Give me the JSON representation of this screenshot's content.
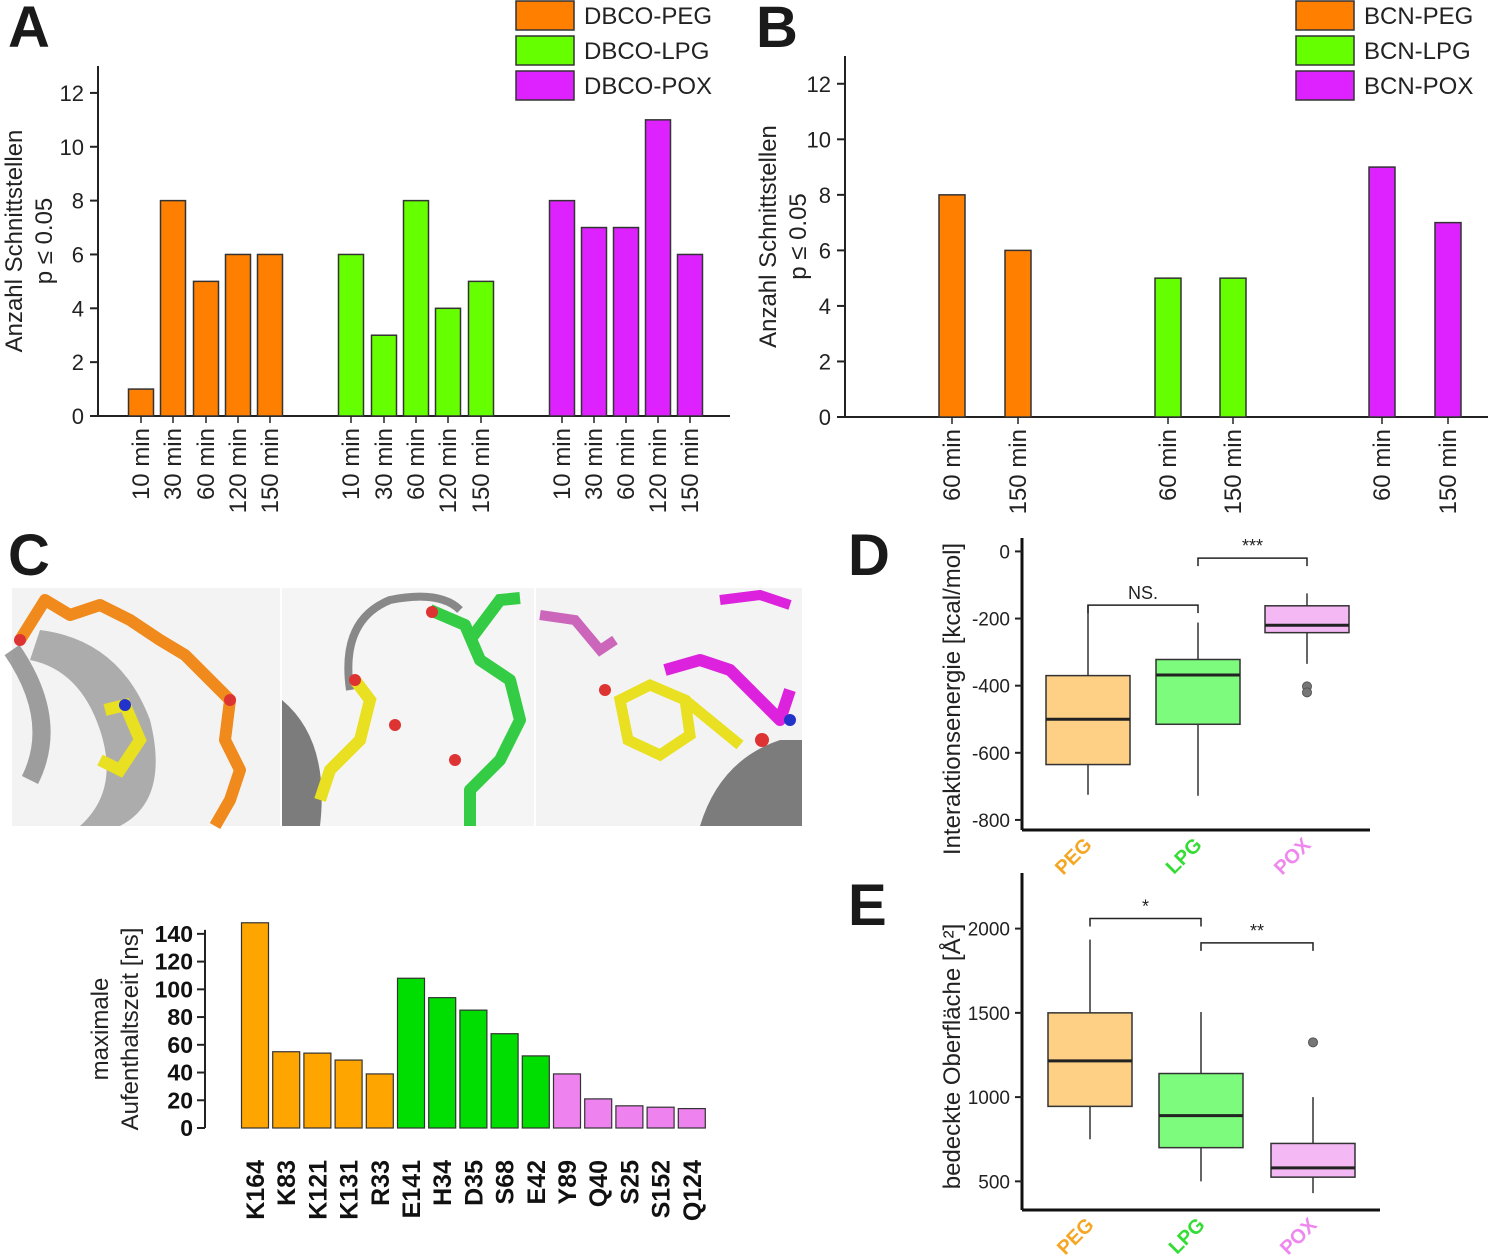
{
  "panels": {
    "a": "A",
    "b": "B",
    "c": "C",
    "d": "D",
    "e": "E"
  },
  "colors": {
    "peg": "#ff7f00",
    "lpg": "#66ff00",
    "pox": "#dd22ff",
    "c_peg": "#ffa500",
    "c_lpg": "#00dd00",
    "c_pox": "#ee82ee",
    "box_peg": "#fdd085",
    "box_lpg": "#7dfb7d",
    "box_pox": "#f4b8f4",
    "lab_peg": "#f5a623",
    "lab_lpg": "#33dd33",
    "lab_pox": "#ee88ee"
  },
  "structure_image": {
    "description_visible": false
  },
  "chart_data": [
    {
      "id": "A",
      "type": "bar",
      "ylabel_line1": "Anzahl Schnittstellen",
      "ylabel_line2": "p ≤ 0.05",
      "ylim": [
        0,
        13
      ],
      "yticks": [
        0,
        2,
        4,
        6,
        8,
        10,
        12
      ],
      "legend": [
        "DBCO-PEG",
        "DBCO-LPG",
        "DBCO-POX"
      ],
      "legend_position": "top-right",
      "groups": [
        {
          "name": "DBCO-PEG",
          "color_key": "peg",
          "categories": [
            "10 min",
            "30 min",
            "60 min",
            "120 min",
            "150 min"
          ],
          "values": [
            1,
            8,
            5,
            6,
            6
          ]
        },
        {
          "name": "DBCO-LPG",
          "color_key": "lpg",
          "categories": [
            "10 min",
            "30 min",
            "60 min",
            "120 min",
            "150 min"
          ],
          "values": [
            6,
            3,
            8,
            4,
            5
          ]
        },
        {
          "name": "DBCO-POX",
          "color_key": "pox",
          "categories": [
            "10 min",
            "30 min",
            "60 min",
            "120 min",
            "150 min"
          ],
          "values": [
            8,
            7,
            7,
            11,
            6
          ]
        }
      ]
    },
    {
      "id": "B",
      "type": "bar",
      "ylabel_line1": "Anzahl Schnittstellen",
      "ylabel_line2": "p ≤ 0.05",
      "ylim": [
        0,
        13
      ],
      "yticks": [
        0,
        2,
        4,
        6,
        8,
        10,
        12
      ],
      "legend": [
        "BCN-PEG",
        "BCN-LPG",
        "BCN-POX"
      ],
      "legend_position": "top-right",
      "groups": [
        {
          "name": "BCN-PEG",
          "color_key": "peg",
          "categories": [
            "60 min",
            "150 min"
          ],
          "values": [
            8,
            6
          ]
        },
        {
          "name": "BCN-LPG",
          "color_key": "lpg",
          "categories": [
            "60 min",
            "150 min"
          ],
          "values": [
            5,
            5
          ]
        },
        {
          "name": "BCN-POX",
          "color_key": "pox",
          "categories": [
            "60 min",
            "150 min"
          ],
          "values": [
            9,
            7
          ]
        }
      ]
    },
    {
      "id": "C",
      "type": "bar",
      "ylabel_line1": "maximale",
      "ylabel_line2": "Aufenthaltszeit [ns]",
      "ylim": [
        0,
        150
      ],
      "yticks": [
        0,
        20,
        40,
        60,
        80,
        100,
        120,
        140
      ],
      "categories": [
        "K164",
        "K83",
        "K121",
        "K131",
        "R33",
        "E141",
        "H34",
        "D35",
        "S68",
        "E42",
        "Y89",
        "Q40",
        "S25",
        "S152",
        "Q124"
      ],
      "values": [
        148,
        55,
        54,
        49,
        39,
        108,
        94,
        85,
        68,
        52,
        39,
        21,
        16,
        15,
        14
      ],
      "color_keys": [
        "c_peg",
        "c_peg",
        "c_peg",
        "c_peg",
        "c_peg",
        "c_lpg",
        "c_lpg",
        "c_lpg",
        "c_lpg",
        "c_lpg",
        "c_pox",
        "c_pox",
        "c_pox",
        "c_pox",
        "c_pox"
      ]
    },
    {
      "id": "D",
      "type": "box",
      "ylabel": "Interaktionsenergie [kcal/mol]",
      "ylim": [
        -830,
        40
      ],
      "yticks": [
        0,
        -200,
        -400,
        -600,
        -800
      ],
      "categories": [
        "PEG",
        "LPG",
        "POX"
      ],
      "boxes": [
        {
          "q1": -635,
          "median": -500,
          "q3": -370,
          "whisker_low": -725,
          "whisker_high": -160,
          "outliers": []
        },
        {
          "q1": -515,
          "median": -368,
          "q3": -322,
          "whisker_low": -728,
          "whisker_high": -212,
          "outliers": []
        },
        {
          "q1": -242,
          "median": -220,
          "q3": -162,
          "whisker_low": -335,
          "whisker_high": -125,
          "outliers": [
            -402,
            -420
          ]
        }
      ],
      "significance": [
        {
          "from": 0,
          "to": 1,
          "label": "NS.",
          "y": -160
        },
        {
          "from": 1,
          "to": 2,
          "label": "***",
          "y": -20
        }
      ]
    },
    {
      "id": "E",
      "type": "box",
      "ylabel": "bedeckte Oberfläche [Å²]",
      "ylim": [
        330,
        2330
      ],
      "yticks": [
        500,
        1000,
        1500,
        2000
      ],
      "categories": [
        "PEG",
        "LPG",
        "POX"
      ],
      "boxes": [
        {
          "q1": 945,
          "median": 1215,
          "q3": 1500,
          "whisker_low": 750,
          "whisker_high": 1935,
          "outliers": []
        },
        {
          "q1": 700,
          "median": 890,
          "q3": 1140,
          "whisker_low": 500,
          "whisker_high": 1505,
          "outliers": []
        },
        {
          "q1": 525,
          "median": 580,
          "q3": 725,
          "whisker_low": 430,
          "whisker_high": 1000,
          "outliers": [
            1325
          ]
        }
      ],
      "significance": [
        {
          "from": 0,
          "to": 1,
          "label": "*",
          "y": 2060
        },
        {
          "from": 1,
          "to": 2,
          "label": "**",
          "y": 1915
        }
      ]
    }
  ]
}
